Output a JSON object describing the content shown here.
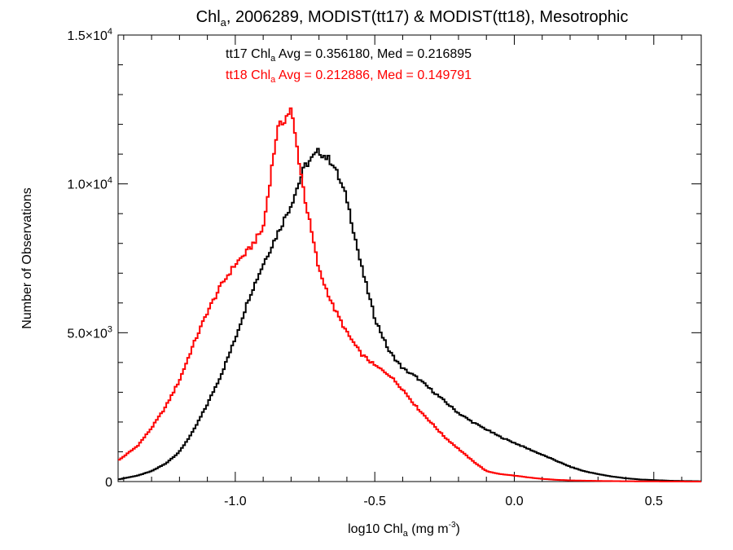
{
  "chart_data": {
    "type": "line",
    "style": "step-histogram",
    "title": {
      "main": "Chl",
      "main_sub": "a",
      "rest": ", 2006289, MODIST(tt17) & MODIST(tt18), Mesotrophic"
    },
    "xlabel": {
      "main": "log10 Chl",
      "main_sub": "a",
      "rest": " (mg m",
      "sup": "-3",
      "end": ")"
    },
    "ylabel": "Number of Observations",
    "xlim": [
      -1.42,
      0.67
    ],
    "ylim": [
      0,
      15000
    ],
    "x_ticks": [
      {
        "value": -1.0,
        "label": "-1.0"
      },
      {
        "value": -0.5,
        "label": "-0.5"
      },
      {
        "value": 0.0,
        "label": "0.0"
      },
      {
        "value": 0.5,
        "label": "0.5"
      }
    ],
    "y_ticks": [
      {
        "value": 0,
        "label": "0",
        "mant": "0",
        "exp": ""
      },
      {
        "value": 5000,
        "label": "5.0×10³",
        "mant": "5.0×10",
        "exp": "3"
      },
      {
        "value": 10000,
        "label": "1.0×10⁴",
        "mant": "1.0×10",
        "exp": "4"
      },
      {
        "value": 15000,
        "label": "1.5×10⁴",
        "mant": "1.5×10",
        "exp": "4"
      }
    ],
    "annotations": [
      {
        "prefix": "tt17 Chl",
        "sub": "a",
        "suffix": " Avg = 0.356180, Med = 0.216895",
        "color": "#000000"
      },
      {
        "prefix": "tt18 Chl",
        "sub": "a",
        "suffix": " Avg = 0.212886, Med = 0.149791",
        "color": "#ff0000"
      }
    ],
    "x": [
      -1.42,
      -1.35,
      -1.3,
      -1.25,
      -1.2,
      -1.15,
      -1.1,
      -1.05,
      -1.0,
      -0.95,
      -0.9,
      -0.85,
      -0.8,
      -0.75,
      -0.7,
      -0.65,
      -0.6,
      -0.55,
      -0.5,
      -0.45,
      -0.4,
      -0.35,
      -0.3,
      -0.25,
      -0.2,
      -0.15,
      -0.1,
      -0.05,
      0.0,
      0.05,
      0.1,
      0.15,
      0.2,
      0.25,
      0.3,
      0.35,
      0.4,
      0.45,
      0.5,
      0.55,
      0.6,
      0.67
    ],
    "series": [
      {
        "name": "tt17",
        "color": "#000000",
        "values": [
          70,
          200,
          350,
          600,
          1000,
          1700,
          2600,
          3600,
          4800,
          6200,
          7300,
          8300,
          9300,
          10600,
          11100,
          10700,
          9500,
          7300,
          5500,
          4400,
          3800,
          3500,
          3100,
          2700,
          2300,
          2000,
          1750,
          1500,
          1300,
          1100,
          900,
          700,
          500,
          350,
          250,
          170,
          110,
          70,
          50,
          30,
          20,
          10
        ]
      },
      {
        "name": "tt18",
        "color": "#ff0000",
        "values": [
          700,
          1200,
          1800,
          2500,
          3400,
          4600,
          5700,
          6600,
          7300,
          7800,
          8500,
          11800,
          12500,
          9500,
          7100,
          5900,
          5000,
          4300,
          3900,
          3600,
          3100,
          2500,
          2000,
          1500,
          1100,
          700,
          350,
          250,
          200,
          140,
          90,
          60,
          40,
          30,
          20,
          15,
          10,
          8,
          6,
          4,
          2,
          1
        ]
      }
    ]
  }
}
